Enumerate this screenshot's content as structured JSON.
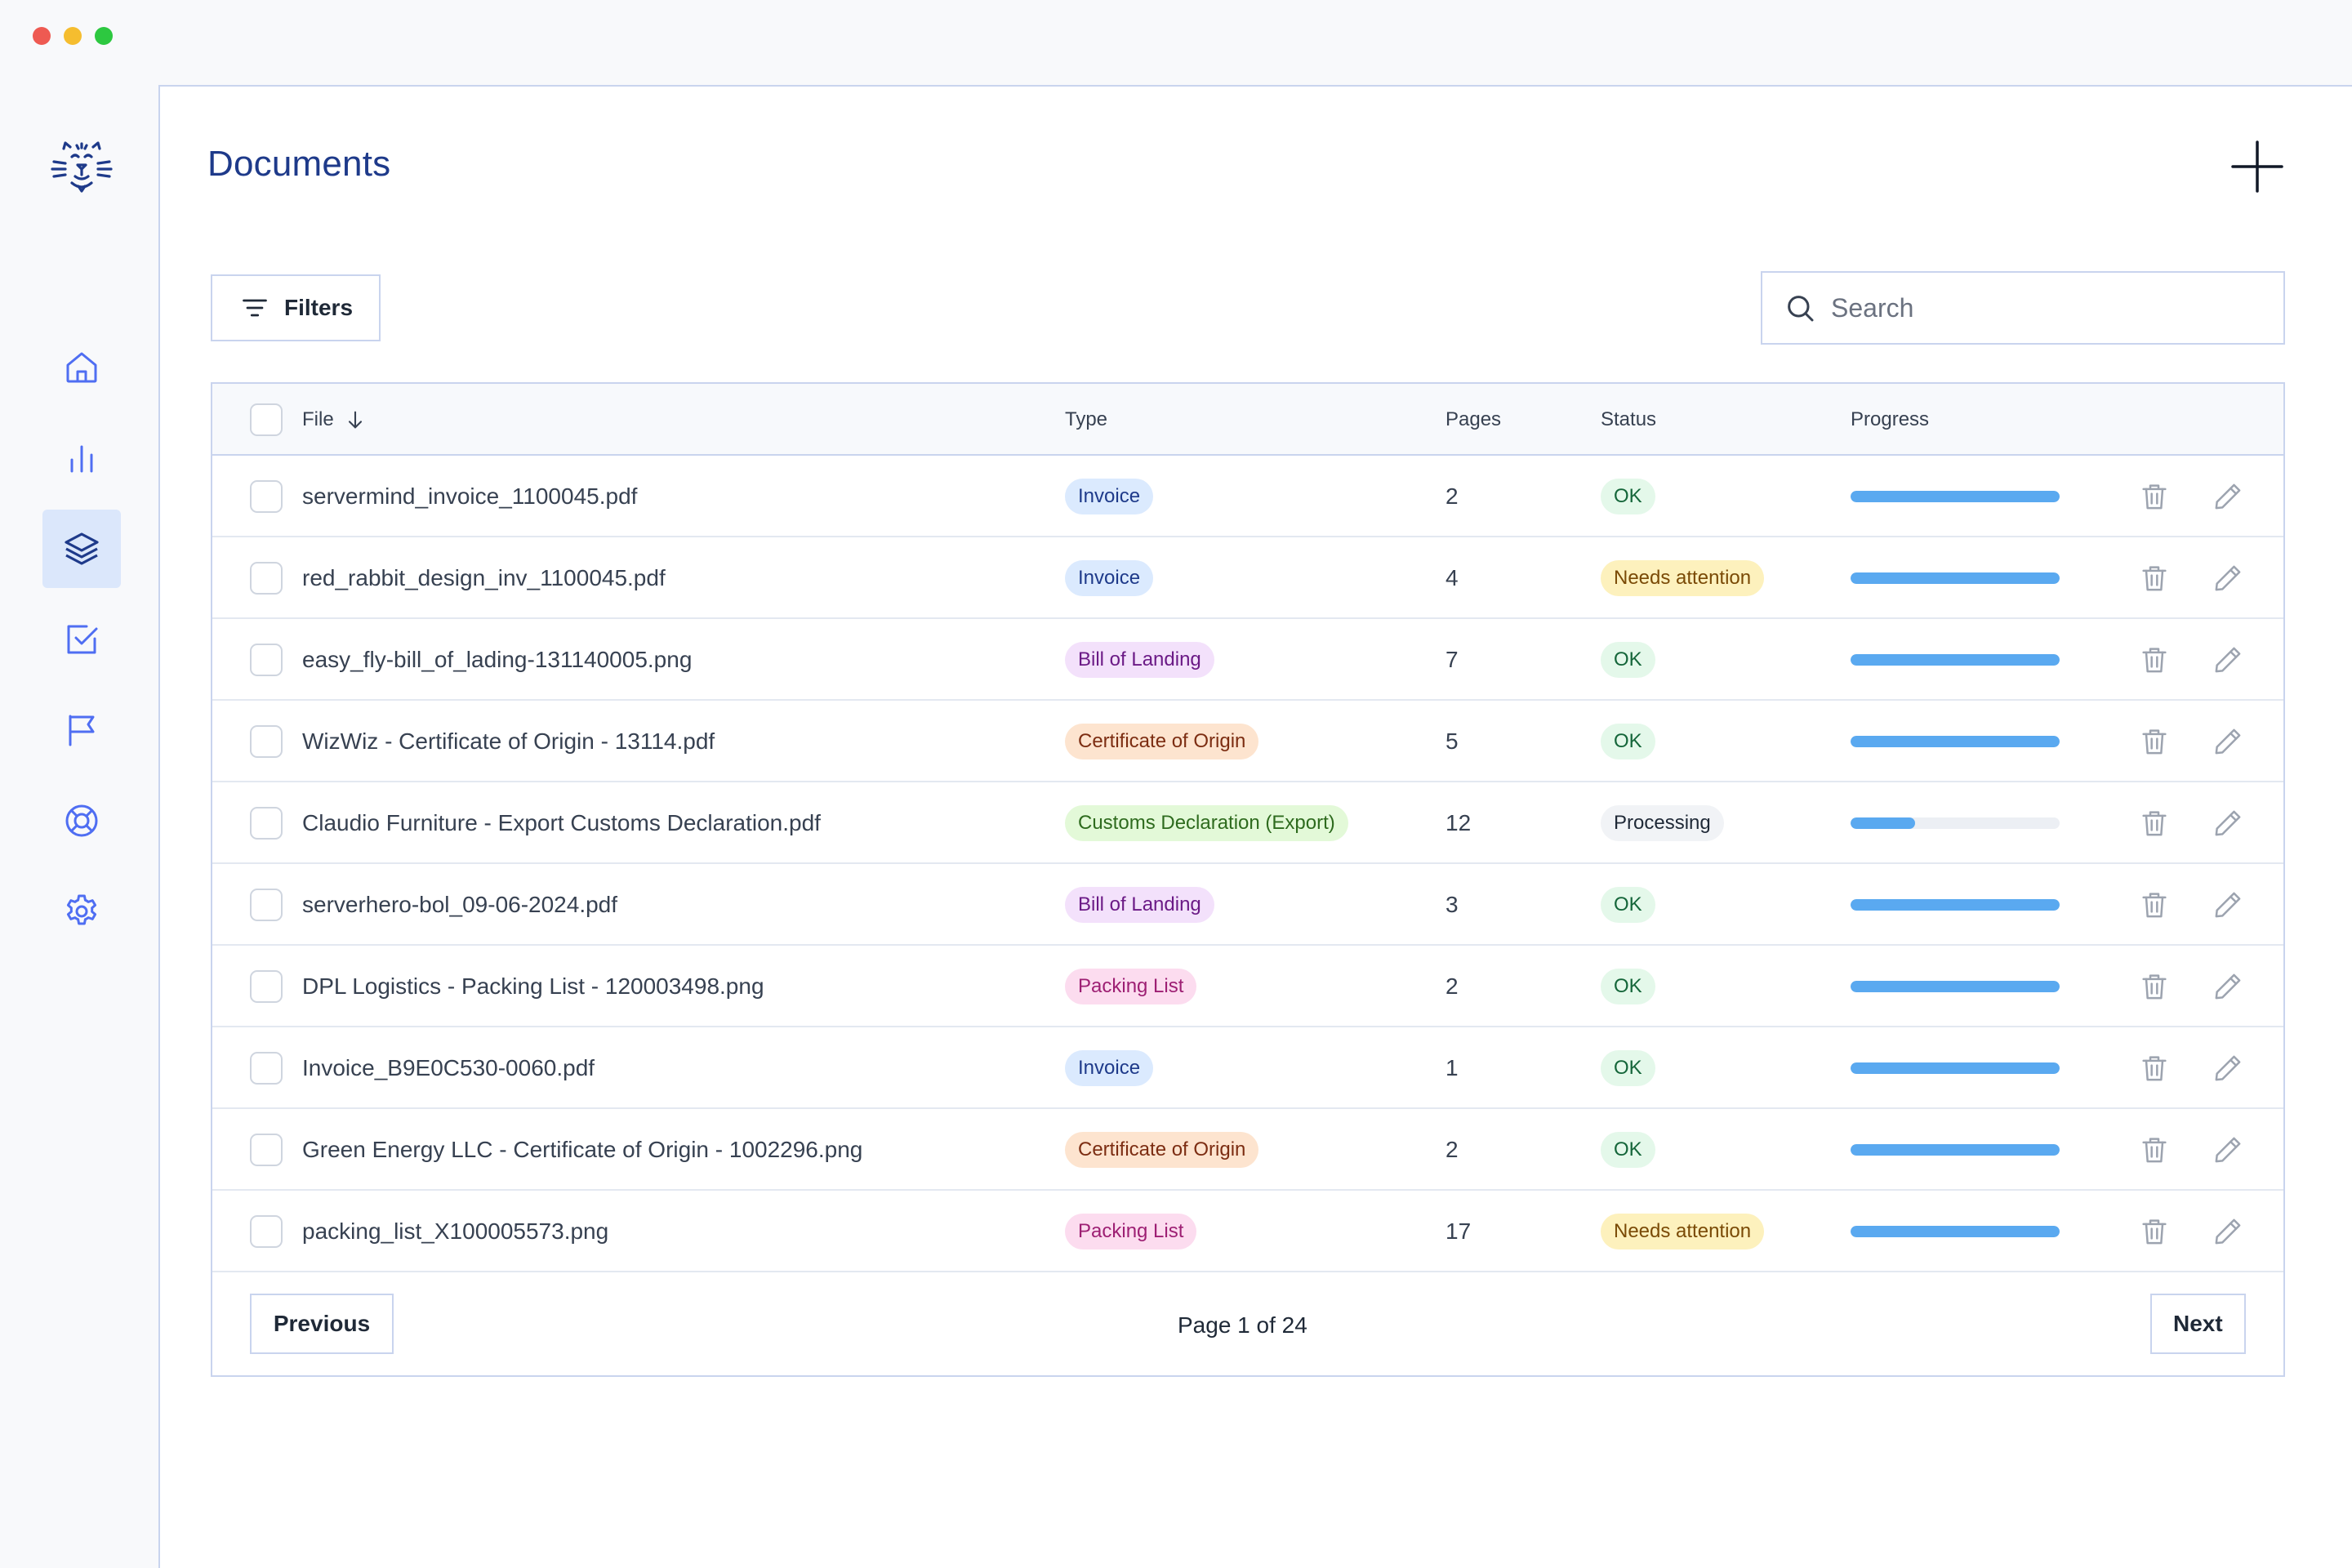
{
  "window": {
    "buttons": [
      "close",
      "minimize",
      "zoom"
    ]
  },
  "sidebar": {
    "logo_icon": "cat-face-logo-icon",
    "items": [
      {
        "icon": "home-icon",
        "active": false
      },
      {
        "icon": "bar-chart-icon",
        "active": false
      },
      {
        "icon": "layers-icon",
        "active": true
      },
      {
        "icon": "checkbox-icon",
        "active": false
      },
      {
        "icon": "flag-icon",
        "active": false
      },
      {
        "icon": "lifebuoy-icon",
        "active": false
      },
      {
        "icon": "gear-icon",
        "active": false
      }
    ]
  },
  "header": {
    "title": "Documents",
    "add_icon": "plus-icon"
  },
  "toolbar": {
    "filters_label": "Filters",
    "search_placeholder": "Search"
  },
  "table": {
    "columns": {
      "file": "File",
      "type": "Type",
      "pages": "Pages",
      "status": "Status",
      "progress": "Progress"
    },
    "sort_icon": "arrow-down-icon",
    "rows": [
      {
        "file": "servermind_invoice_1100045.pdf",
        "type": "Invoice",
        "type_kind": "invoice",
        "pages": "2",
        "status": "OK",
        "status_kind": "ok",
        "progress": 1.0
      },
      {
        "file": "red_rabbit_design_inv_1100045.pdf",
        "type": "Invoice",
        "type_kind": "invoice",
        "pages": "4",
        "status": "Needs attention",
        "status_kind": "attention",
        "progress": 1.0
      },
      {
        "file": "easy_fly-bill_of_lading-131140005.png",
        "type": "Bill of Landing",
        "type_kind": "bol",
        "pages": "7",
        "status": "OK",
        "status_kind": "ok",
        "progress": 1.0
      },
      {
        "file": " WizWiz - Certificate of Origin - 13114.pdf",
        "type": "Certificate of Origin",
        "type_kind": "coo",
        "pages": "5",
        "status": "OK",
        "status_kind": "ok",
        "progress": 1.0
      },
      {
        "file": "Claudio Furniture - Export Customs Declaration.pdf",
        "type": "Customs Declaration (Export)",
        "type_kind": "customs",
        "pages": "12",
        "status": "Processing",
        "status_kind": "processing",
        "progress": 0.31
      },
      {
        "file": "serverhero-bol_09-06-2024.pdf",
        "type": "Bill of Landing",
        "type_kind": "bol",
        "pages": "3",
        "status": "OK",
        "status_kind": "ok",
        "progress": 1.0
      },
      {
        "file": "DPL Logistics - Packing List - 120003498.png",
        "type": "Packing List",
        "type_kind": "packing",
        "pages": "2",
        "status": "OK",
        "status_kind": "ok",
        "progress": 1.0
      },
      {
        "file": "Invoice_B9E0C530-0060.pdf",
        "type": "Invoice",
        "type_kind": "invoice",
        "pages": "1",
        "status": "OK",
        "status_kind": "ok",
        "progress": 1.0
      },
      {
        "file": " Green Energy LLC - Certificate of Origin - 1002296.png",
        "type": "Certificate of Origin",
        "type_kind": "coo",
        "pages": "2",
        "status": "OK",
        "status_kind": "ok",
        "progress": 1.0
      },
      {
        "file": "packing_list_X100005573.png",
        "type": "Packing List",
        "type_kind": "packing",
        "pages": "17",
        "status": "Needs attention",
        "status_kind": "attention",
        "progress": 1.0
      }
    ],
    "row_actions": {
      "delete_icon": "trash-icon",
      "edit_icon": "pencil-icon"
    }
  },
  "pagination": {
    "previous_label": "Previous",
    "page_info": "Page 1 of 24",
    "next_label": "Next"
  },
  "colors": {
    "accent": "#1e3a8a",
    "sidebar_icon": "#4f6ef2",
    "border": "#c9d4ee",
    "progress": "#5aa9f0"
  }
}
